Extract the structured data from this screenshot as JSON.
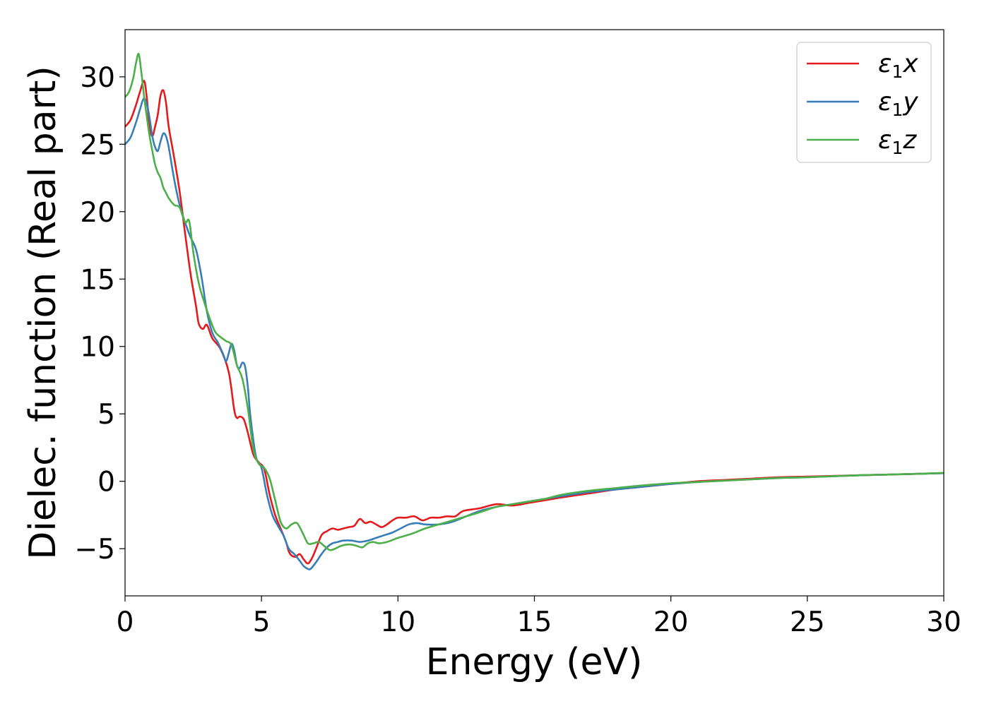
{
  "chart_data": {
    "type": "line",
    "title": "",
    "xlabel": "Energy (eV)",
    "ylabel": "Dielec. function (Real part)",
    "xlim": [
      0,
      30
    ],
    "ylim": [
      -8.5,
      33.5
    ],
    "xticks": [
      0,
      5,
      10,
      15,
      20,
      25,
      30
    ],
    "xtick_labels": [
      "0",
      "5",
      "10",
      "15",
      "20",
      "25",
      "30"
    ],
    "yticks": [
      -5,
      0,
      5,
      10,
      15,
      20,
      25,
      30
    ],
    "ytick_labels": [
      "−5",
      "0",
      "5",
      "10",
      "15",
      "20",
      "25",
      "30"
    ],
    "grid": false,
    "legend_position": "top-right",
    "series": [
      {
        "name": "ε1x",
        "legend_base": "ε",
        "legend_sub": "1",
        "legend_var": "x",
        "color": "#e41a1c",
        "x": [
          0,
          0.2,
          0.4,
          0.55,
          0.7,
          0.8,
          0.9,
          1.0,
          1.1,
          1.2,
          1.3,
          1.4,
          1.5,
          1.6,
          1.8,
          2.0,
          2.2,
          2.4,
          2.6,
          2.7,
          2.85,
          3.0,
          3.2,
          3.5,
          3.8,
          4.0,
          4.1,
          4.2,
          4.35,
          4.5,
          4.7,
          4.9,
          5.1,
          5.3,
          5.5,
          5.7,
          5.9,
          6.0,
          6.1,
          6.25,
          6.4,
          6.55,
          6.7,
          6.85,
          7.0,
          7.2,
          7.4,
          7.6,
          7.8,
          8.0,
          8.2,
          8.4,
          8.6,
          8.8,
          9.0,
          9.2,
          9.4,
          9.6,
          9.8,
          10.0,
          10.3,
          10.6,
          10.9,
          11.2,
          11.5,
          11.8,
          12.1,
          12.4,
          13.0,
          13.6,
          14.2,
          14.8,
          15.4,
          16.0,
          17.0,
          18.0,
          19.0,
          20.0,
          21.0,
          22.0,
          23.0,
          24.0,
          25.0,
          26.0,
          27.0,
          28.0,
          29.0,
          30.0
        ],
        "y": [
          26.3,
          26.8,
          27.9,
          28.9,
          29.7,
          28.4,
          26.3,
          25.6,
          26.3,
          27.2,
          28.6,
          29.0,
          28.1,
          26.3,
          24.0,
          21.5,
          18.4,
          15.4,
          13.0,
          11.7,
          11.3,
          11.6,
          10.6,
          9.8,
          8.1,
          5.3,
          4.7,
          4.8,
          4.6,
          3.6,
          2.0,
          1.4,
          0.9,
          -1.0,
          -2.5,
          -3.5,
          -4.5,
          -5.2,
          -5.5,
          -5.6,
          -5.4,
          -5.8,
          -6.1,
          -5.7,
          -5.0,
          -4.0,
          -3.7,
          -3.5,
          -3.6,
          -3.5,
          -3.4,
          -3.3,
          -2.8,
          -3.1,
          -3.0,
          -3.2,
          -3.4,
          -3.2,
          -2.9,
          -2.7,
          -2.7,
          -2.6,
          -2.9,
          -2.7,
          -2.7,
          -2.6,
          -2.6,
          -2.2,
          -2.0,
          -1.7,
          -1.8,
          -1.6,
          -1.4,
          -1.2,
          -0.9,
          -0.6,
          -0.4,
          -0.2,
          0.0,
          0.1,
          0.2,
          0.3,
          0.35,
          0.4,
          0.45,
          0.5,
          0.55,
          0.6
        ]
      },
      {
        "name": "ε1y",
        "legend_base": "ε",
        "legend_sub": "1",
        "legend_var": "y",
        "color": "#377eb8",
        "x": [
          0,
          0.2,
          0.4,
          0.55,
          0.7,
          0.85,
          1.0,
          1.1,
          1.2,
          1.3,
          1.4,
          1.5,
          1.6,
          1.8,
          2.0,
          2.2,
          2.4,
          2.6,
          2.8,
          3.0,
          3.2,
          3.4,
          3.6,
          3.7,
          3.8,
          3.9,
          4.0,
          4.1,
          4.2,
          4.3,
          4.4,
          4.5,
          4.6,
          4.8,
          5.0,
          5.2,
          5.4,
          5.6,
          5.8,
          6.0,
          6.2,
          6.4,
          6.55,
          6.7,
          6.8,
          7.0,
          7.2,
          7.4,
          7.6,
          7.8,
          8.0,
          8.3,
          8.6,
          8.9,
          9.2,
          9.5,
          9.8,
          10.1,
          10.4,
          10.7,
          11.0,
          11.5,
          12.0,
          12.5,
          13.0,
          13.6,
          14.2,
          14.8,
          15.4,
          16.0,
          17.0,
          18.0,
          19.0,
          20.0,
          21.0,
          22.0,
          23.0,
          24.0,
          25.0,
          26.0,
          27.0,
          28.0,
          29.0,
          30.0
        ],
        "y": [
          25.0,
          25.5,
          26.6,
          27.6,
          28.4,
          27.5,
          25.6,
          24.8,
          24.5,
          25.2,
          25.8,
          25.6,
          24.8,
          22.4,
          20.5,
          19.2,
          18.1,
          17.2,
          15.2,
          12.6,
          11.0,
          10.3,
          9.4,
          8.9,
          9.5,
          10.2,
          9.7,
          8.6,
          8.4,
          8.8,
          8.5,
          7.0,
          4.7,
          1.8,
          1.0,
          -1.0,
          -2.5,
          -3.3,
          -4.0,
          -5.0,
          -5.4,
          -5.9,
          -6.3,
          -6.5,
          -6.5,
          -6.0,
          -5.4,
          -4.9,
          -4.6,
          -4.5,
          -4.4,
          -4.4,
          -4.5,
          -4.4,
          -4.2,
          -4.0,
          -3.8,
          -3.5,
          -3.2,
          -3.1,
          -3.2,
          -3.2,
          -3.0,
          -2.6,
          -2.2,
          -1.9,
          -1.7,
          -1.5,
          -1.3,
          -1.1,
          -0.8,
          -0.6,
          -0.4,
          -0.2,
          -0.05,
          0.05,
          0.15,
          0.25,
          0.3,
          0.38,
          0.45,
          0.5,
          0.55,
          0.6
        ]
      },
      {
        "name": "ε1z",
        "legend_base": "ε",
        "legend_sub": "1",
        "legend_var": "z",
        "color": "#4daf4a",
        "x": [
          0,
          0.15,
          0.3,
          0.4,
          0.5,
          0.6,
          0.7,
          0.8,
          0.9,
          1.0,
          1.1,
          1.2,
          1.3,
          1.4,
          1.5,
          1.6,
          1.8,
          2.0,
          2.2,
          2.35,
          2.5,
          2.7,
          2.9,
          3.1,
          3.3,
          3.5,
          3.7,
          3.9,
          4.1,
          4.3,
          4.5,
          4.7,
          4.9,
          5.1,
          5.3,
          5.5,
          5.7,
          5.9,
          6.1,
          6.3,
          6.5,
          6.7,
          6.9,
          7.1,
          7.3,
          7.5,
          7.7,
          7.9,
          8.1,
          8.3,
          8.5,
          8.7,
          8.9,
          9.1,
          9.3,
          9.6,
          10.0,
          10.5,
          11.0,
          11.5,
          12.0,
          12.5,
          13.0,
          13.6,
          14.2,
          14.8,
          15.4,
          16.0,
          17.0,
          18.0,
          19.0,
          20.0,
          21.0,
          22.0,
          23.0,
          24.0,
          25.0,
          26.0,
          27.0,
          28.0,
          29.0,
          30.0
        ],
        "y": [
          28.5,
          28.9,
          29.9,
          31.0,
          31.7,
          30.3,
          28.5,
          27.0,
          25.6,
          24.5,
          23.5,
          22.9,
          22.5,
          21.8,
          21.4,
          21.0,
          20.5,
          20.3,
          19.2,
          19.3,
          17.0,
          14.7,
          13.3,
          12.1,
          11.1,
          10.7,
          10.4,
          10.1,
          8.6,
          7.6,
          5.4,
          2.4,
          1.3,
          1.0,
          0.2,
          -1.4,
          -3.0,
          -3.5,
          -3.2,
          -3.1,
          -3.8,
          -4.6,
          -4.6,
          -4.5,
          -4.8,
          -5.1,
          -5.0,
          -4.8,
          -4.7,
          -4.7,
          -4.8,
          -4.9,
          -4.6,
          -4.5,
          -4.6,
          -4.5,
          -4.2,
          -3.9,
          -3.5,
          -3.2,
          -2.9,
          -2.6,
          -2.3,
          -1.9,
          -1.7,
          -1.5,
          -1.3,
          -1.0,
          -0.7,
          -0.5,
          -0.3,
          -0.15,
          -0.05,
          0.05,
          0.15,
          0.25,
          0.3,
          0.38,
          0.45,
          0.5,
          0.55,
          0.62
        ]
      }
    ]
  }
}
